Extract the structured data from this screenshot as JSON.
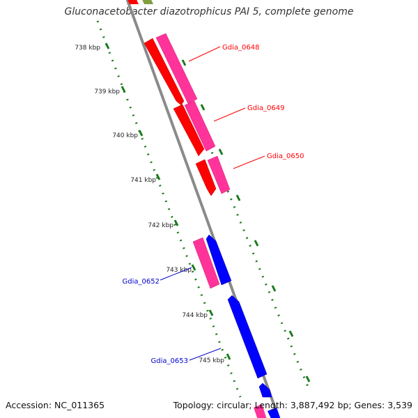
{
  "title": "Gluconacetobacter diazotrophicus PAI 5, complete genome",
  "footer": {
    "accession": "Accession: NC_011365",
    "topology": "Topology: circular; Length: 3,887,492 bp; Genes: 3,539"
  },
  "colors": {
    "backbone": "#8a8a8a",
    "tick": "#1a7a1a",
    "forward_gene": "#ff3399",
    "reverse_gene_red": "#ff0000",
    "reverse_gene_blue": "#0000ff",
    "label_red": "#ff0000",
    "label_blue": "#0000cc"
  },
  "ticks": [
    {
      "label": "738 kbp"
    },
    {
      "label": "739 kbp"
    },
    {
      "label": "740 kbp"
    },
    {
      "label": "741 kbp"
    },
    {
      "label": "742 kbp"
    },
    {
      "label": "743 kbp"
    },
    {
      "label": "744 kbp"
    },
    {
      "label": "745 kbp"
    }
  ],
  "gene_labels": [
    {
      "text": "Gdia_0648",
      "color": "#ff0000"
    },
    {
      "text": "Gdia_0649",
      "color": "#ff0000"
    },
    {
      "text": "Gdia_0650",
      "color": "#ff0000"
    },
    {
      "text": "Gdia_0652",
      "color": "#0000cc"
    },
    {
      "text": "Gdia_0653",
      "color": "#0000cc"
    }
  ]
}
